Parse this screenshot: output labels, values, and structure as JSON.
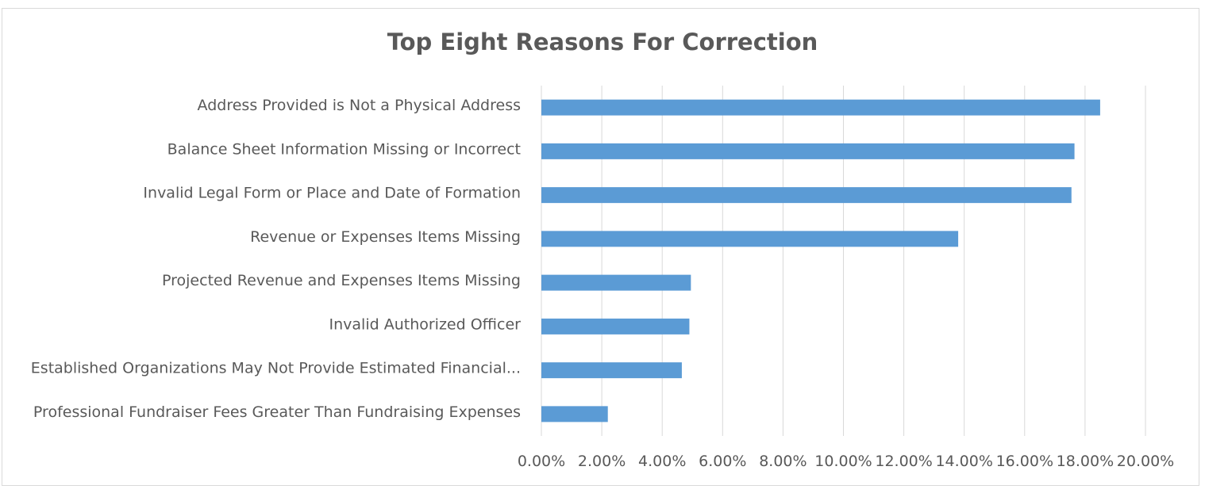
{
  "chart_data": {
    "type": "bar",
    "orientation": "horizontal",
    "title": "Top Eight Reasons For Correction",
    "xlabel": "",
    "ylabel": "",
    "categories": [
      "Address Provided is Not a Physical Address",
      "Balance Sheet Information Missing or Incorrect",
      "Invalid Legal Form or Place and Date of Formation",
      "Revenue or Expenses Items Missing",
      "Projected Revenue and Expenses Items Missing",
      "Invalid Authorized Officer",
      "Established Organizations May Not Provide Estimated Financial...",
      "Professional Fundraiser Fees Greater Than Fundraising Expenses"
    ],
    "values": [
      18.5,
      17.65,
      17.55,
      13.8,
      4.95,
      4.9,
      4.65,
      2.2
    ],
    "xlim": [
      0,
      20
    ],
    "x_ticks": [
      "0.00%",
      "2.00%",
      "4.00%",
      "6.00%",
      "8.00%",
      "10.00%",
      "12.00%",
      "14.00%",
      "16.00%",
      "18.00%",
      "20.00%"
    ],
    "grid": "vertical",
    "legend": "none",
    "colors": {
      "bar": "#5b9bd5",
      "grid": "#d9d9d9",
      "text": "#595959"
    }
  }
}
